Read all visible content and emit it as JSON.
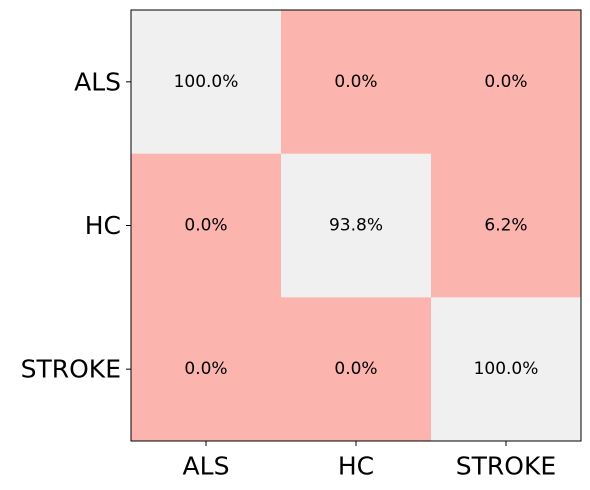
{
  "chart_data": {
    "type": "heatmap",
    "title": "",
    "xlabel": "",
    "ylabel": "",
    "x_categories": [
      "ALS",
      "HC",
      "STROKE"
    ],
    "y_categories": [
      "ALS",
      "HC",
      "STROKE"
    ],
    "values": [
      [
        100.0,
        0.0,
        0.0
      ],
      [
        0.0,
        93.8,
        6.2
      ],
      [
        0.0,
        0.0,
        100.0
      ]
    ],
    "cell_labels": [
      [
        "100.0%",
        "0.0%",
        "0.0%"
      ],
      [
        "0.0%",
        "93.8%",
        "6.2%"
      ],
      [
        "0.0%",
        "0.0%",
        "100.0%"
      ]
    ],
    "colors": {
      "diagonal": "#f0f0f0",
      "off_diagonal": "#fbb4ae",
      "axis": "#000000"
    },
    "grid": false,
    "legend": "none"
  }
}
